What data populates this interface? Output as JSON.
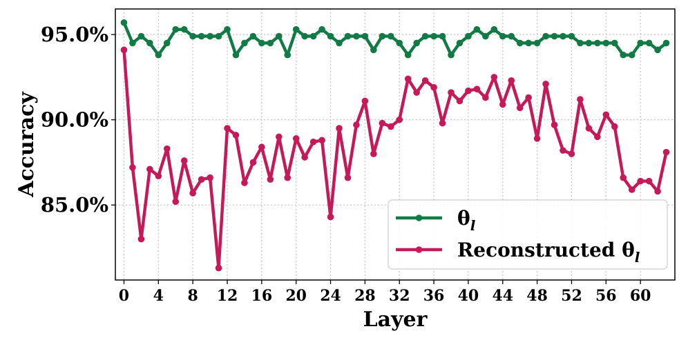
{
  "chart_data": {
    "type": "line",
    "xlabel": "Layer",
    "ylabel": "Accuracy",
    "xlim": [
      -1,
      64
    ],
    "ylim": [
      80.6,
      96.5
    ],
    "x_ticks": [
      0,
      4,
      8,
      12,
      16,
      20,
      24,
      28,
      32,
      36,
      40,
      44,
      48,
      52,
      56,
      60
    ],
    "y_ticks": [
      85.0,
      90.0,
      95.0
    ],
    "y_tick_labels": [
      "85.0%",
      "90.0%",
      "95.0%"
    ],
    "grid": true,
    "legend_position": "lower-right",
    "x": [
      0,
      1,
      2,
      3,
      4,
      5,
      6,
      7,
      8,
      9,
      10,
      11,
      12,
      13,
      14,
      15,
      16,
      17,
      18,
      19,
      20,
      21,
      22,
      23,
      24,
      25,
      26,
      27,
      28,
      29,
      30,
      31,
      32,
      33,
      34,
      35,
      36,
      37,
      38,
      39,
      40,
      41,
      42,
      43,
      44,
      45,
      46,
      47,
      48,
      49,
      50,
      51,
      52,
      53,
      54,
      55,
      56,
      57,
      58,
      59,
      60,
      61,
      62,
      63
    ],
    "series": [
      {
        "name": "θ",
        "name_subscript": "l",
        "color": "#127a44",
        "values": [
          95.7,
          94.5,
          94.9,
          94.5,
          93.8,
          94.5,
          95.3,
          95.3,
          94.9,
          94.9,
          94.9,
          94.9,
          95.3,
          93.8,
          94.5,
          94.9,
          94.5,
          94.5,
          94.9,
          93.8,
          95.3,
          94.9,
          94.9,
          95.3,
          94.9,
          94.5,
          94.9,
          94.9,
          94.9,
          94.1,
          94.9,
          94.9,
          94.5,
          93.8,
          94.5,
          94.9,
          94.9,
          94.9,
          93.8,
          94.5,
          94.9,
          95.3,
          94.9,
          95.3,
          94.9,
          94.9,
          94.5,
          94.5,
          94.5,
          94.9,
          94.9,
          94.9,
          94.9,
          94.5,
          94.5,
          94.5,
          94.5,
          94.5,
          93.8,
          93.8,
          94.5,
          94.5,
          94.1,
          94.5
        ]
      },
      {
        "name": "Reconstructed θ",
        "name_subscript": "l",
        "color": "#c41a5a",
        "values": [
          94.1,
          87.2,
          83.0,
          87.1,
          86.7,
          88.3,
          85.2,
          87.6,
          85.7,
          86.5,
          86.6,
          81.3,
          89.5,
          89.1,
          86.3,
          87.5,
          88.4,
          86.5,
          89.0,
          86.6,
          88.9,
          87.8,
          88.7,
          88.8,
          84.3,
          89.5,
          86.6,
          89.7,
          91.1,
          88.0,
          89.8,
          89.6,
          90.0,
          92.4,
          91.6,
          92.3,
          91.9,
          89.8,
          91.6,
          91.1,
          91.7,
          91.8,
          91.3,
          92.5,
          90.9,
          92.3,
          90.7,
          91.3,
          88.9,
          92.1,
          89.7,
          88.2,
          88.0,
          91.2,
          89.5,
          89.0,
          90.3,
          89.6,
          86.6,
          85.9,
          86.4,
          86.4,
          85.8,
          88.1
        ]
      }
    ]
  }
}
